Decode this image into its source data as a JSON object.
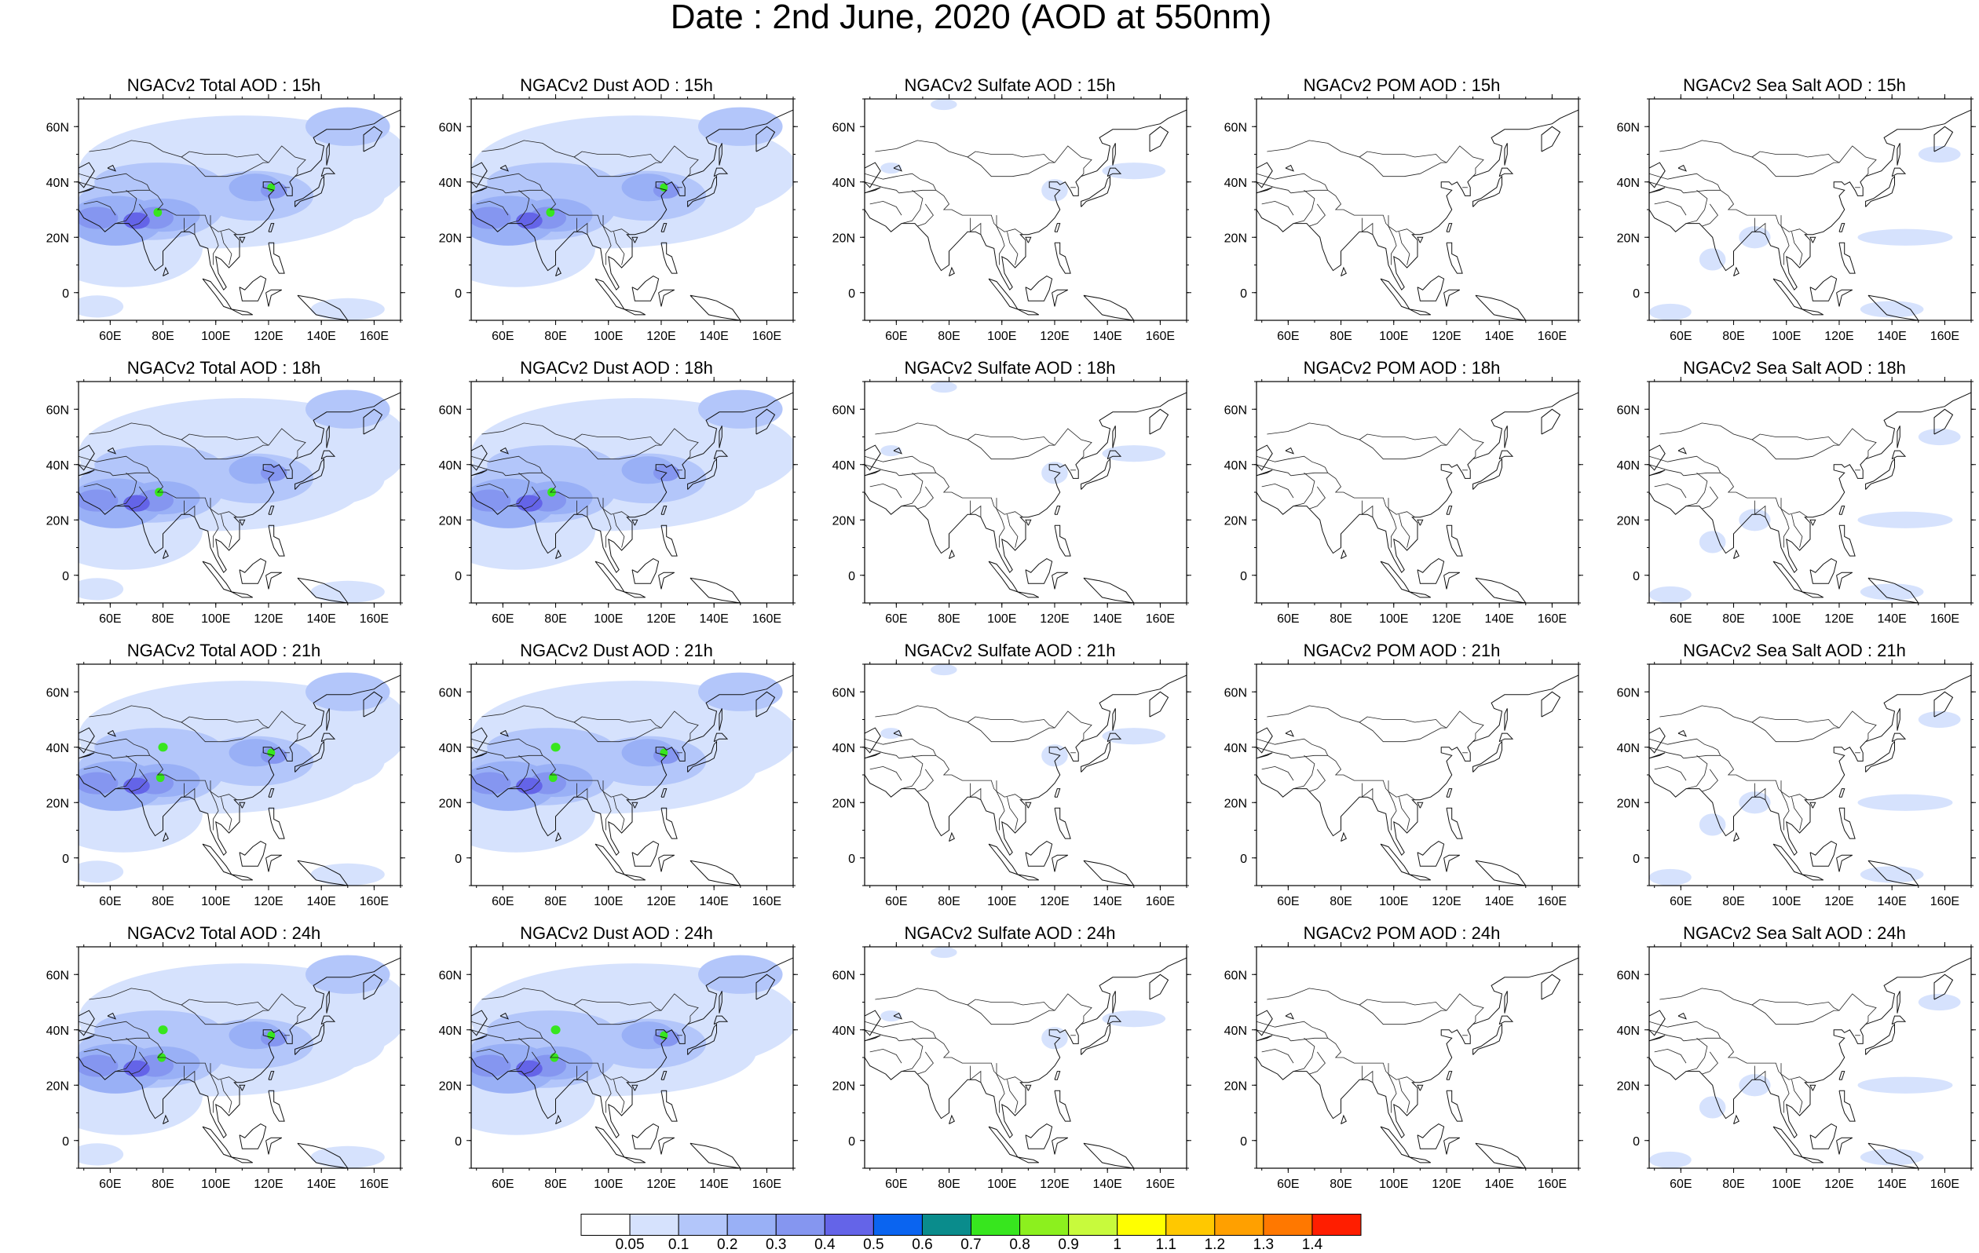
{
  "title": "Date : 2nd June, 2020 (AOD at 550nm)",
  "axes": {
    "lon_ticks": [
      "60E",
      "80E",
      "100E",
      "120E",
      "140E",
      "160E"
    ],
    "lat_ticks": [
      "60N",
      "40N",
      "20N",
      "0"
    ],
    "lon_range": [
      48,
      170
    ],
    "lat_range": [
      -10,
      70
    ]
  },
  "panels": [
    {
      "title": "NGACv2 Total AOD : 15h",
      "species": "total",
      "hour": "15h",
      "variant": 0
    },
    {
      "title": "NGACv2 Dust AOD : 15h",
      "species": "dust",
      "hour": "15h",
      "variant": 0
    },
    {
      "title": "NGACv2 Sulfate AOD : 15h",
      "species": "sulfate",
      "hour": "15h",
      "variant": 0
    },
    {
      "title": "NGACv2 POM AOD : 15h",
      "species": "pom",
      "hour": "15h",
      "variant": 0
    },
    {
      "title": "NGACv2 Sea Salt AOD : 15h",
      "species": "seasalt",
      "hour": "15h",
      "variant": 0
    },
    {
      "title": "NGACv2 Total AOD : 18h",
      "species": "total",
      "hour": "18h",
      "variant": 1
    },
    {
      "title": "NGACv2 Dust AOD : 18h",
      "species": "dust",
      "hour": "18h",
      "variant": 1
    },
    {
      "title": "NGACv2 Sulfate AOD : 18h",
      "species": "sulfate",
      "hour": "18h",
      "variant": 1
    },
    {
      "title": "NGACv2 POM AOD : 18h",
      "species": "pom",
      "hour": "18h",
      "variant": 1
    },
    {
      "title": "NGACv2 Sea Salt AOD : 18h",
      "species": "seasalt",
      "hour": "18h",
      "variant": 1
    },
    {
      "title": "NGACv2 Total AOD : 21h",
      "species": "total",
      "hour": "21h",
      "variant": 2
    },
    {
      "title": "NGACv2 Dust AOD : 21h",
      "species": "dust",
      "hour": "21h",
      "variant": 2
    },
    {
      "title": "NGACv2 Sulfate AOD : 21h",
      "species": "sulfate",
      "hour": "21h",
      "variant": 2
    },
    {
      "title": "NGACv2 POM AOD : 21h",
      "species": "pom",
      "hour": "21h",
      "variant": 2
    },
    {
      "title": "NGACv2 Sea Salt AOD : 21h",
      "species": "seasalt",
      "hour": "21h",
      "variant": 2
    },
    {
      "title": "NGACv2 Total AOD : 24h",
      "species": "total",
      "hour": "24h",
      "variant": 3
    },
    {
      "title": "NGACv2 Dust AOD : 24h",
      "species": "dust",
      "hour": "24h",
      "variant": 3
    },
    {
      "title": "NGACv2 Sulfate AOD : 24h",
      "species": "sulfate",
      "hour": "24h",
      "variant": 3
    },
    {
      "title": "NGACv2 POM AOD : 24h",
      "species": "pom",
      "hour": "24h",
      "variant": 3
    },
    {
      "title": "NGACv2 Sea Salt  AOD : 24h",
      "species": "seasalt",
      "hour": "24h",
      "variant": 3
    }
  ],
  "colorbar": {
    "labels": [
      "0.05",
      "0.1",
      "0.2",
      "0.3",
      "0.4",
      "0.5",
      "0.6",
      "0.7",
      "0.8",
      "0.9",
      "1",
      "1.1",
      "1.2",
      "1.3",
      "1.4"
    ],
    "colors": [
      "#ffffff",
      "#d6e2fd",
      "#b3c6fa",
      "#99b0f6",
      "#8596f0",
      "#6464e8",
      "#0a64f0",
      "#0a8c8c",
      "#37e61e",
      "#8cf01e",
      "#c8fa3c",
      "#ffff00",
      "#ffc800",
      "#ffa000",
      "#ff7800",
      "#ff1e00"
    ]
  }
}
